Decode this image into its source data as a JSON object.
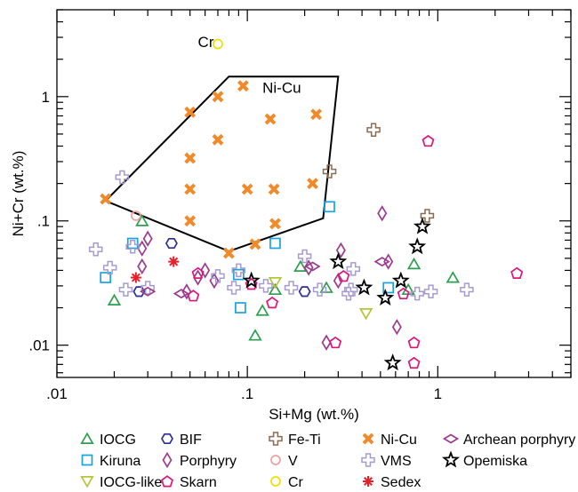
{
  "chart_data": {
    "type": "scatter",
    "x_scale": "log",
    "y_scale": "log",
    "xlim": [
      0.01,
      5
    ],
    "ylim": [
      0.0055,
      5
    ],
    "xlabel": "Si+Mg (wt.%)",
    "ylabel": "Ni+Cr (wt.%)",
    "x_ticks": [
      {
        "value": 0.01,
        "label": ".01"
      },
      {
        "value": 0.1,
        "label": ".1"
      },
      {
        "value": 1,
        "label": "1"
      }
    ],
    "y_ticks": [
      {
        "value": 0.01,
        "label": ".01"
      },
      {
        "value": 0.1,
        "label": ".1"
      },
      {
        "value": 1,
        "label": "1"
      }
    ],
    "grid": false,
    "legend_position": "bottom",
    "annotations": [
      {
        "text": "Cr",
        "x": 0.055,
        "y": 2.5
      },
      {
        "text": "Ni-Cu",
        "x": 0.12,
        "y": 1.07
      }
    ],
    "field": {
      "label": "Ni-Cu",
      "points": [
        [
          0.018,
          0.145
        ],
        [
          0.08,
          1.45
        ],
        [
          0.3,
          1.45
        ],
        [
          0.25,
          0.105
        ],
        [
          0.08,
          0.057
        ]
      ]
    },
    "series": [
      {
        "name": "IOCG",
        "marker": "triangle",
        "color": "#2e9e4f",
        "points": [
          [
            0.02,
            0.023
          ],
          [
            0.028,
            0.1
          ],
          [
            0.11,
            0.012
          ],
          [
            0.12,
            0.019
          ],
          [
            0.14,
            0.028
          ],
          [
            0.19,
            0.043
          ],
          [
            0.26,
            0.029
          ],
          [
            0.7,
            0.028
          ],
          [
            0.75,
            0.045
          ],
          [
            1.2,
            0.035
          ]
        ]
      },
      {
        "name": "Kiruna",
        "marker": "square",
        "color": "#1aa3e0",
        "points": [
          [
            0.018,
            0.035
          ],
          [
            0.025,
            0.066
          ],
          [
            0.09,
            0.037
          ],
          [
            0.092,
            0.02
          ],
          [
            0.14,
            0.066
          ],
          [
            0.27,
            0.13
          ],
          [
            0.55,
            0.029
          ]
        ]
      },
      {
        "name": "IOCG-like",
        "marker": "triangle-down",
        "color": "#b5c53a",
        "points": [
          [
            0.14,
            0.032
          ],
          [
            0.42,
            0.018
          ]
        ]
      },
      {
        "name": "BIF",
        "marker": "hexagon",
        "color": "#2b2f8f",
        "points": [
          [
            0.027,
            0.027
          ],
          [
            0.04,
            0.066
          ],
          [
            0.2,
            0.027
          ]
        ]
      },
      {
        "name": "Porphyry",
        "marker": "diamond",
        "color": "#9b3a8e",
        "points": [
          [
            0.028,
            0.06
          ],
          [
            0.03,
            0.072
          ],
          [
            0.028,
            0.043
          ],
          [
            0.048,
            0.027
          ],
          [
            0.055,
            0.035
          ],
          [
            0.06,
            0.04
          ],
          [
            0.067,
            0.033
          ],
          [
            0.21,
            0.042
          ],
          [
            0.31,
            0.058
          ],
          [
            0.3,
            0.033
          ],
          [
            0.51,
            0.115
          ],
          [
            0.55,
            0.047
          ],
          [
            0.61,
            0.014
          ],
          [
            0.26,
            0.0105
          ]
        ]
      },
      {
        "name": "Skarn",
        "marker": "pentagon",
        "color": "#e0157a",
        "points": [
          [
            0.052,
            0.025
          ],
          [
            0.055,
            0.038
          ],
          [
            0.105,
            0.031
          ],
          [
            0.135,
            0.022
          ],
          [
            0.32,
            0.036
          ],
          [
            0.29,
            0.0105
          ],
          [
            0.66,
            0.026
          ],
          [
            0.75,
            0.0105
          ],
          [
            0.75,
            0.0072
          ],
          [
            0.89,
            0.44
          ],
          [
            2.6,
            0.038
          ]
        ]
      },
      {
        "name": "Fe-Ti",
        "marker": "plus-open",
        "color": "#8a6a50",
        "points": [
          [
            0.46,
            0.54
          ],
          [
            0.27,
            0.25
          ],
          [
            0.88,
            0.11
          ]
        ]
      },
      {
        "name": "V",
        "marker": "circle",
        "color": "#f0a0a0",
        "points": [
          [
            0.026,
            0.11
          ]
        ]
      },
      {
        "name": "Cr",
        "marker": "circle",
        "color": "#f0e000",
        "points": [
          [
            0.07,
            2.65
          ]
        ]
      },
      {
        "name": "Ni-Cu",
        "marker": "x-filled",
        "color": "#f08a2a",
        "points": [
          [
            0.018,
            0.15
          ],
          [
            0.07,
            1.0
          ],
          [
            0.095,
            1.22
          ],
          [
            0.132,
            0.66
          ],
          [
            0.23,
            0.72
          ],
          [
            0.05,
            0.75
          ],
          [
            0.07,
            0.45
          ],
          [
            0.05,
            0.32
          ],
          [
            0.05,
            0.18
          ],
          [
            0.1,
            0.18
          ],
          [
            0.138,
            0.18
          ],
          [
            0.22,
            0.2
          ],
          [
            0.05,
            0.1
          ],
          [
            0.14,
            0.095
          ],
          [
            0.08,
            0.055
          ],
          [
            0.11,
            0.065
          ]
        ]
      },
      {
        "name": "VMS",
        "marker": "plus-open",
        "color": "#a79ad0",
        "points": [
          [
            0.016,
            0.059
          ],
          [
            0.019,
            0.042
          ],
          [
            0.023,
            0.028
          ],
          [
            0.025,
            0.062
          ],
          [
            0.03,
            0.029
          ],
          [
            0.022,
            0.225
          ],
          [
            0.07,
            0.036
          ],
          [
            0.085,
            0.029
          ],
          [
            0.17,
            0.029
          ],
          [
            0.2,
            0.052
          ],
          [
            0.34,
            0.026
          ],
          [
            0.35,
            0.028
          ],
          [
            0.36,
            0.041
          ],
          [
            0.78,
            0.026
          ],
          [
            0.92,
            0.027
          ],
          [
            1.42,
            0.028
          ],
          [
            0.09,
            0.04
          ],
          [
            0.125,
            0.03
          ],
          [
            0.24,
            0.028
          ]
        ]
      },
      {
        "name": "Sedex",
        "marker": "asterisk",
        "color": "#e5202a",
        "points": [
          [
            0.026,
            0.035
          ],
          [
            0.041,
            0.047
          ]
        ]
      },
      {
        "name": "Archean porphyry",
        "marker": "diamond-wide",
        "color": "#9b3a8e",
        "points": [
          [
            0.03,
            0.027
          ],
          [
            0.045,
            0.026
          ],
          [
            0.22,
            0.043
          ],
          [
            0.51,
            0.047
          ]
        ]
      },
      {
        "name": "Opemiska",
        "marker": "star",
        "color": "#000000",
        "points": [
          [
            0.105,
            0.033
          ],
          [
            0.3,
            0.047
          ],
          [
            0.41,
            0.029
          ],
          [
            0.53,
            0.024
          ],
          [
            0.58,
            0.0072
          ],
          [
            0.64,
            0.033
          ],
          [
            0.78,
            0.062
          ],
          [
            0.83,
            0.09
          ]
        ]
      }
    ]
  },
  "legend": {
    "columns": [
      [
        "IOCG",
        "Kiruna",
        "IOCG-like"
      ],
      [
        "BIF",
        "Porphyry",
        "Skarn"
      ],
      [
        "Fe-Ti",
        "V",
        "Cr"
      ],
      [
        "Ni-Cu",
        "VMS",
        "Sedex"
      ],
      [
        "Archean porphyry",
        "Opemiska"
      ]
    ]
  }
}
